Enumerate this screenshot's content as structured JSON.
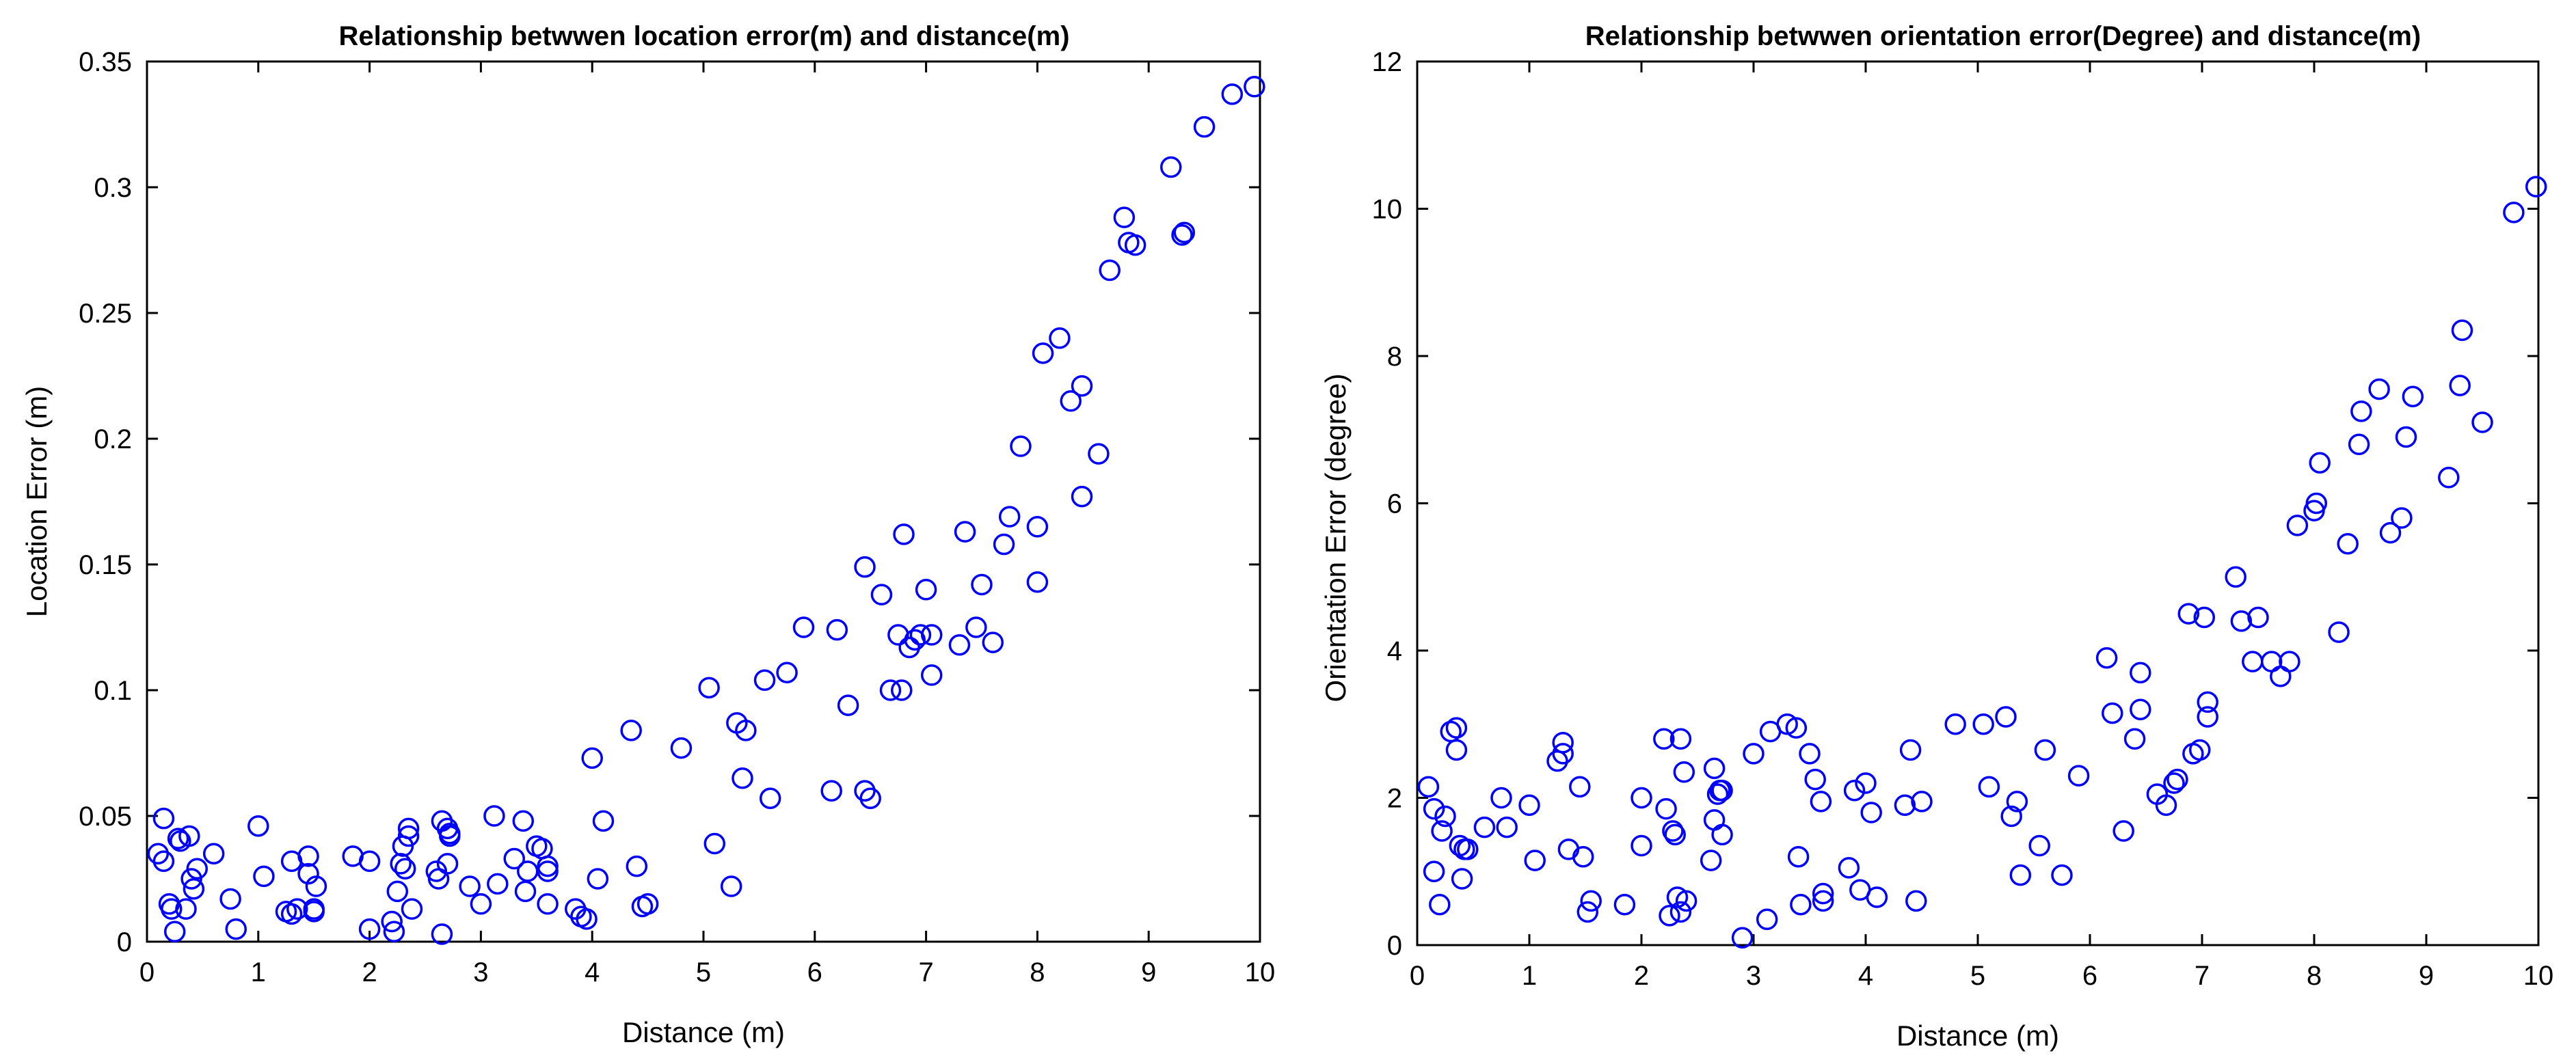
{
  "chart_data": [
    {
      "type": "scatter",
      "title": "Relationship betwwen location error(m) and distance(m)",
      "xlabel": "Distance (m)",
      "ylabel": "Location Error (m)",
      "xlim": [
        0,
        10
      ],
      "ylim": [
        0,
        0.35
      ],
      "xticks": [
        0,
        1,
        2,
        3,
        4,
        5,
        6,
        7,
        8,
        9,
        10
      ],
      "xtick_labels": [
        "0",
        "1",
        "2",
        "3",
        "4",
        "5",
        "6",
        "7",
        "8",
        "9",
        "10"
      ],
      "yticks": [
        0,
        0.05,
        0.1,
        0.15,
        0.2,
        0.25,
        0.3,
        0.35
      ],
      "ytick_labels": [
        "0",
        "0.05",
        "0.1",
        "0.15",
        "0.2",
        "0.25",
        "0.3",
        "0.35"
      ],
      "grid": false,
      "marker_color": "#0000ff",
      "x": [
        0.1,
        0.15,
        0.15,
        0.2,
        0.22,
        0.25,
        0.28,
        0.3,
        0.35,
        0.38,
        0.4,
        0.42,
        0.45,
        0.6,
        0.75,
        0.8,
        1.0,
        1.05,
        1.25,
        1.3,
        1.3,
        1.35,
        1.45,
        1.45,
        1.5,
        1.5,
        1.52,
        1.85,
        2.0,
        2.0,
        2.2,
        2.22,
        2.25,
        2.28,
        2.3,
        2.32,
        2.35,
        2.35,
        2.38,
        2.6,
        2.62,
        2.65,
        2.65,
        2.7,
        2.7,
        2.72,
        2.72,
        2.9,
        3.0,
        3.12,
        3.15,
        3.3,
        3.38,
        3.4,
        3.42,
        3.5,
        3.55,
        3.6,
        3.6,
        3.6,
        3.85,
        3.9,
        3.95,
        4.0,
        4.05,
        4.1,
        4.35,
        4.4,
        4.45,
        4.5,
        4.8,
        5.05,
        5.1,
        5.25,
        5.3,
        5.35,
        5.38,
        5.55,
        5.6,
        5.75,
        5.9,
        6.15,
        6.2,
        6.3,
        6.45,
        6.45,
        6.5,
        6.6,
        6.68,
        6.75,
        6.78,
        6.8,
        6.85,
        6.9,
        6.95,
        7.0,
        7.05,
        7.05,
        7.3,
        7.35,
        7.45,
        7.5,
        7.6,
        7.7,
        7.75,
        7.85,
        8.0,
        8.0,
        8.05,
        8.2,
        8.3,
        8.4,
        8.4,
        8.55,
        8.65,
        8.78,
        8.82,
        8.88,
        9.2,
        9.3,
        9.32,
        9.5,
        9.75,
        9.95
      ],
      "y": [
        0.035,
        0.032,
        0.049,
        0.015,
        0.013,
        0.004,
        0.041,
        0.04,
        0.013,
        0.042,
        0.025,
        0.021,
        0.029,
        0.035,
        0.017,
        0.005,
        0.046,
        0.026,
        0.012,
        0.032,
        0.011,
        0.013,
        0.034,
        0.027,
        0.012,
        0.013,
        0.022,
        0.034,
        0.005,
        0.032,
        0.008,
        0.004,
        0.02,
        0.031,
        0.038,
        0.029,
        0.045,
        0.042,
        0.013,
        0.028,
        0.025,
        0.003,
        0.048,
        0.045,
        0.031,
        0.043,
        0.042,
        0.022,
        0.015,
        0.05,
        0.023,
        0.033,
        0.048,
        0.02,
        0.028,
        0.038,
        0.037,
        0.03,
        0.028,
        0.015,
        0.013,
        0.01,
        0.009,
        0.073,
        0.025,
        0.048,
        0.084,
        0.03,
        0.014,
        0.015,
        0.077,
        0.101,
        0.039,
        0.022,
        0.087,
        0.065,
        0.084,
        0.104,
        0.057,
        0.107,
        0.125,
        0.06,
        0.124,
        0.094,
        0.149,
        0.06,
        0.057,
        0.138,
        0.1,
        0.122,
        0.1,
        0.162,
        0.117,
        0.12,
        0.122,
        0.14,
        0.106,
        0.122,
        0.118,
        0.163,
        0.125,
        0.142,
        0.119,
        0.158,
        0.169,
        0.197,
        0.143,
        0.165,
        0.234,
        0.24,
        0.215,
        0.221,
        0.177,
        0.194,
        0.267,
        0.288,
        0.278,
        0.277,
        0.308,
        0.281,
        0.282,
        0.324,
        0.337,
        0.34
      ]
    },
    {
      "type": "scatter",
      "title": "Relationship betwwen orientation error(Degree) and distance(m)",
      "xlabel": "Distance (m)",
      "ylabel": "Orientation Error (degree)",
      "xlim": [
        0,
        10
      ],
      "ylim": [
        0,
        12
      ],
      "xticks": [
        0,
        1,
        2,
        3,
        4,
        5,
        6,
        7,
        8,
        9,
        10
      ],
      "xtick_labels": [
        "0",
        "1",
        "2",
        "3",
        "4",
        "5",
        "6",
        "7",
        "8",
        "9",
        "10"
      ],
      "yticks": [
        0,
        2,
        4,
        6,
        8,
        10,
        12
      ],
      "ytick_labels": [
        "0",
        "2",
        "4",
        "6",
        "8",
        "10",
        "12"
      ],
      "grid": false,
      "marker_color": "#0000ff",
      "x": [
        0.1,
        0.15,
        0.15,
        0.2,
        0.22,
        0.25,
        0.3,
        0.35,
        0.35,
        0.38,
        0.4,
        0.42,
        0.45,
        0.6,
        0.75,
        0.8,
        1.0,
        1.05,
        1.25,
        1.3,
        1.3,
        1.35,
        1.45,
        1.48,
        1.52,
        1.55,
        1.85,
        2.0,
        2.0,
        2.2,
        2.22,
        2.25,
        2.28,
        2.3,
        2.32,
        2.35,
        2.35,
        2.38,
        2.4,
        2.62,
        2.65,
        2.65,
        2.68,
        2.7,
        2.72,
        2.72,
        2.9,
        3.0,
        3.12,
        3.15,
        3.3,
        3.38,
        3.4,
        3.42,
        3.5,
        3.55,
        3.6,
        3.62,
        3.62,
        3.85,
        3.9,
        3.95,
        4.0,
        4.05,
        4.1,
        4.35,
        4.4,
        4.45,
        4.5,
        4.8,
        5.05,
        5.1,
        5.25,
        5.3,
        5.35,
        5.38,
        5.55,
        5.6,
        5.75,
        5.9,
        6.15,
        6.2,
        6.3,
        6.4,
        6.45,
        6.45,
        6.6,
        6.68,
        6.75,
        6.78,
        6.88,
        6.92,
        6.98,
        7.02,
        7.05,
        7.05,
        7.3,
        7.35,
        7.45,
        7.5,
        7.62,
        7.7,
        7.78,
        7.85,
        8.0,
        8.02,
        8.05,
        8.22,
        8.3,
        8.4,
        8.42,
        8.58,
        8.68,
        8.78,
        8.82,
        8.88,
        9.2,
        9.3,
        9.32,
        9.5,
        9.78,
        9.98
      ],
      "y": [
        2.15,
        1.85,
        1.0,
        0.55,
        1.55,
        1.75,
        2.9,
        2.95,
        2.65,
        1.35,
        0.9,
        1.3,
        1.3,
        1.6,
        2.0,
        1.6,
        1.9,
        1.15,
        2.5,
        2.6,
        2.75,
        1.3,
        2.15,
        1.2,
        0.45,
        0.6,
        0.55,
        2.0,
        1.35,
        2.8,
        1.85,
        0.4,
        1.55,
        1.5,
        0.65,
        0.45,
        2.8,
        2.35,
        0.6,
        1.15,
        1.7,
        2.4,
        2.05,
        2.1,
        2.1,
        1.5,
        0.1,
        2.6,
        0.35,
        2.9,
        3.0,
        2.95,
        1.2,
        0.55,
        2.6,
        2.25,
        1.95,
        0.6,
        0.7,
        1.05,
        2.1,
        0.75,
        2.2,
        1.8,
        0.65,
        1.9,
        2.65,
        0.6,
        1.95,
        3.0,
        3.0,
        2.15,
        3.1,
        1.75,
        1.95,
        0.95,
        1.35,
        2.65,
        0.95,
        2.3,
        3.9,
        3.15,
        1.55,
        2.8,
        3.7,
        3.2,
        2.05,
        1.9,
        2.2,
        2.25,
        4.5,
        2.6,
        2.65,
        4.45,
        3.3,
        3.1,
        5.0,
        4.4,
        3.85,
        4.45,
        3.85,
        3.65,
        3.85,
        5.7,
        5.9,
        6.0,
        6.55,
        4.25,
        5.45,
        6.8,
        7.25,
        7.55,
        5.6,
        5.8,
        6.9,
        7.45,
        6.35,
        7.6,
        8.35,
        7.1,
        9.95,
        10.3
      ]
    }
  ]
}
